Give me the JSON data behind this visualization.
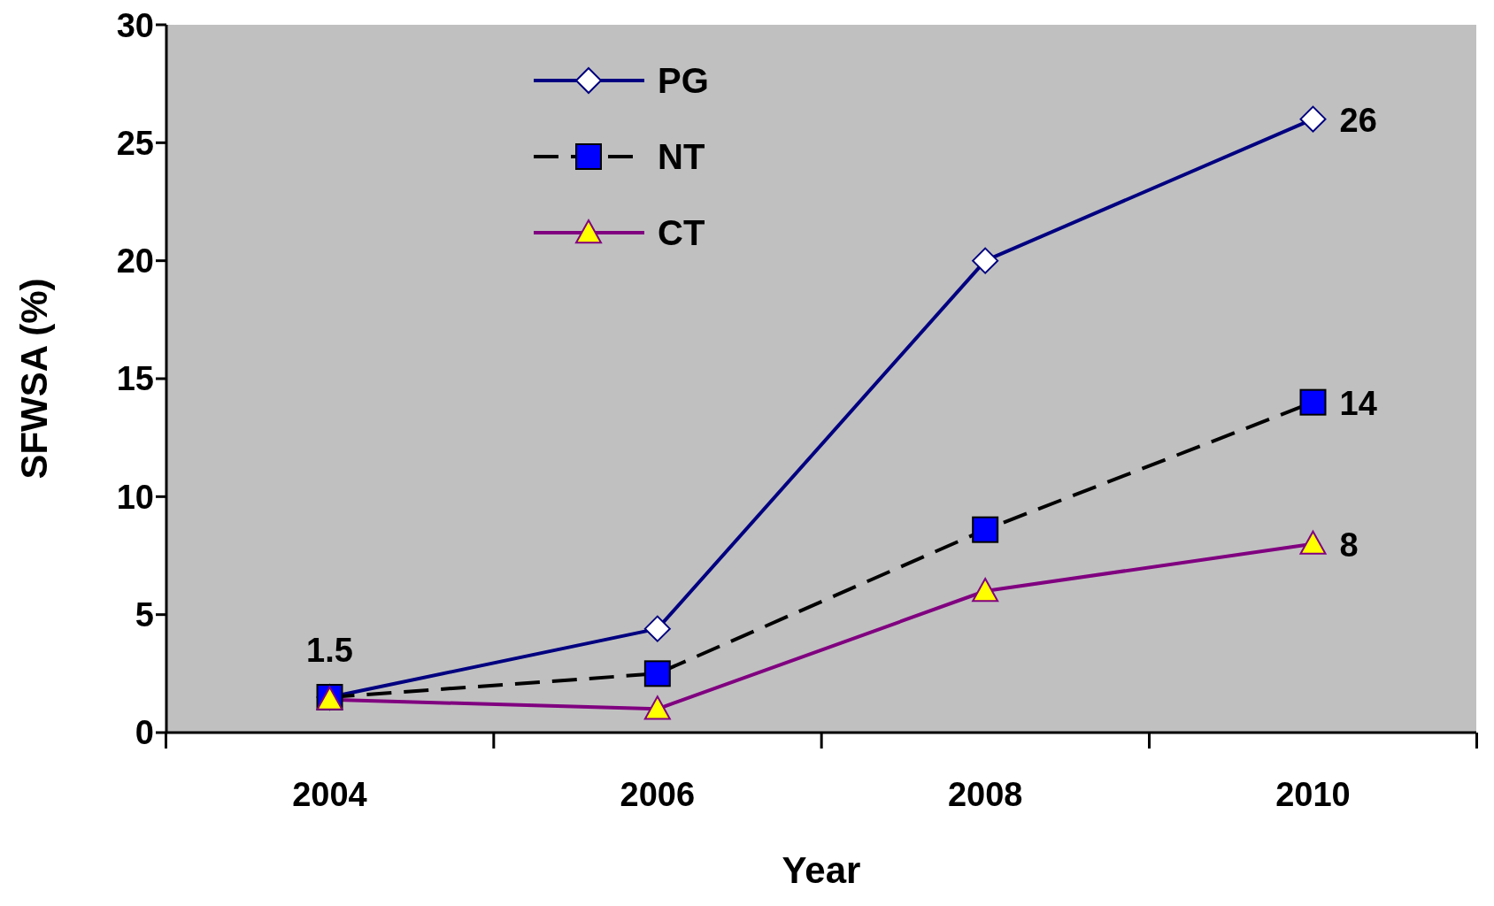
{
  "chart_data": {
    "type": "line",
    "xlabel": "Year",
    "ylabel": "SFWSA (%)",
    "categories": [
      "2004",
      "2006",
      "2008",
      "2010"
    ],
    "ylim": [
      0,
      30
    ],
    "yticks": [
      0,
      5,
      10,
      15,
      20,
      25,
      30
    ],
    "grid": false,
    "legend": "top left",
    "series": [
      {
        "name": "PG",
        "color": "#000080",
        "marker": "diamond",
        "line_style": "solid",
        "values": [
          1.5,
          4.4,
          20,
          26
        ],
        "value_labels": [
          "1.5",
          null,
          null,
          "26"
        ]
      },
      {
        "name": "NT",
        "color": "#000000",
        "marker": "square",
        "line_style": "dashed",
        "values": [
          1.5,
          2.5,
          8.6,
          14
        ],
        "value_labels": [
          null,
          null,
          null,
          "14"
        ]
      },
      {
        "name": "CT",
        "color": "#800080",
        "marker": "triangle",
        "line_style": "solid",
        "values": [
          1.4,
          1.0,
          6,
          8
        ],
        "value_labels": [
          null,
          null,
          null,
          "8"
        ]
      }
    ]
  }
}
